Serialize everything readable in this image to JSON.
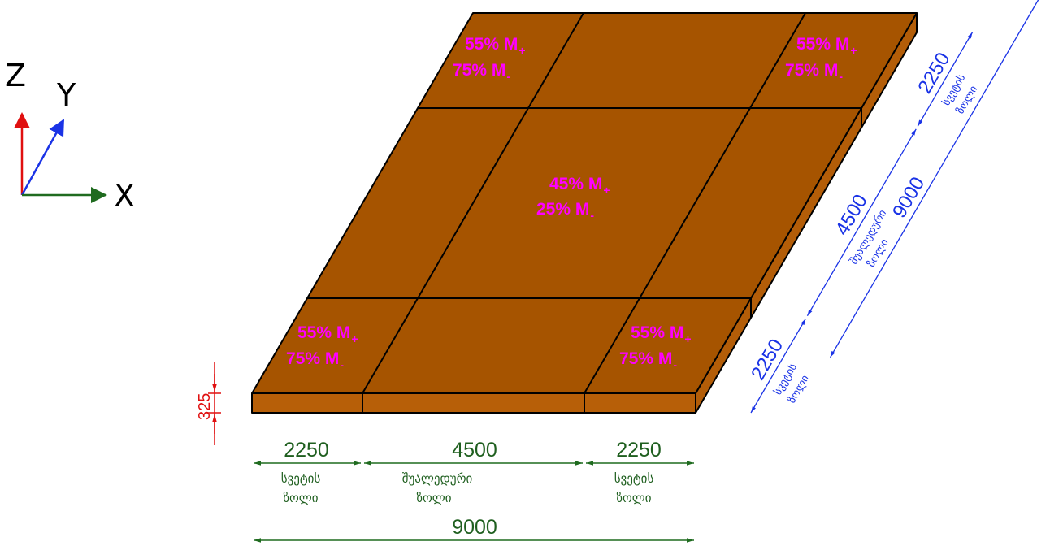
{
  "axes": {
    "z": "Z",
    "y": "Y",
    "x": "X"
  },
  "zones": {
    "corner_top_left": {
      "pos": "55% M",
      "pos_sign": "+",
      "neg": "75% M",
      "neg_sign": "-"
    },
    "corner_top_right": {
      "pos": "55% M",
      "pos_sign": "+",
      "neg": "75% M",
      "neg_sign": "-"
    },
    "center": {
      "pos": "45% M",
      "pos_sign": "+",
      "neg": "25% M",
      "neg_sign": "-"
    },
    "corner_bottom_left": {
      "pos": "55% M",
      "pos_sign": "+",
      "neg": "75% M",
      "neg_sign": "-"
    },
    "corner_bottom_right": {
      "pos": "55% M",
      "pos_sign": "+",
      "neg": "75% M",
      "neg_sign": "-"
    }
  },
  "thickness": "325",
  "x_dims": {
    "left": {
      "value": "2250",
      "line1": "სვეტის",
      "line2": "ზოლი"
    },
    "middle": {
      "value": "4500",
      "line1": "შუალედური",
      "line2": "ზოლი"
    },
    "right": {
      "value": "2250",
      "line1": "სვეტის",
      "line2": "ზოლი"
    },
    "total": "9000"
  },
  "y_dims": {
    "near": {
      "value": "2250",
      "line1": "სვეტის",
      "line2": "ზოლი"
    },
    "middle": {
      "value": "4500",
      "line1": "შუალედური",
      "line2": "ზოლი"
    },
    "far": {
      "value": "2250",
      "line1": "სვეტის",
      "line2": "ზოლი"
    },
    "total": "9000"
  },
  "colors": {
    "slab_top": "#a65400",
    "slab_side": "#b75f08",
    "annotation": "#ff00ff",
    "dim_x": "#1f5f1f",
    "dim_y": "#1a33e6",
    "dim_z": "#e01010"
  }
}
